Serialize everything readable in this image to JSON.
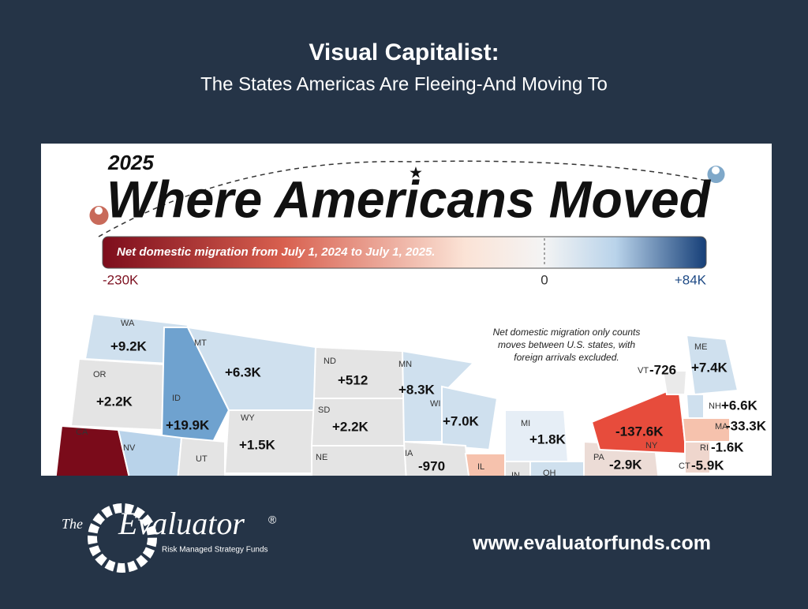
{
  "header": {
    "title": "Visual Capitalist:",
    "subtitle": "The States Americas Are Fleeing-And Moving To"
  },
  "infographic": {
    "year": "2025",
    "title": "Where Americans Moved",
    "scale": {
      "caption": "Net domestic migration from July 1, 2024 to July 1, 2025.",
      "min_label": "-230K",
      "mid_label": "0",
      "max_label": "+84K"
    },
    "note": [
      "Net domestic migration only counts",
      "moves between U.S. states, with",
      "foreign arrivals excluded."
    ],
    "states": [
      {
        "abbr": "WA",
        "label": "+9.2K"
      },
      {
        "abbr": "OR",
        "label": "+2.2K"
      },
      {
        "abbr": "CA"
      },
      {
        "abbr": "ID",
        "label": "+19.9K"
      },
      {
        "abbr": "MT",
        "label": "+6.3K"
      },
      {
        "abbr": "WY",
        "label": "+1.5K"
      },
      {
        "abbr": "NV"
      },
      {
        "abbr": "UT"
      },
      {
        "abbr": "ND",
        "label": "+512"
      },
      {
        "abbr": "SD",
        "label": "+2.2K"
      },
      {
        "abbr": "NE"
      },
      {
        "abbr": "MN",
        "label": "+8.3K"
      },
      {
        "abbr": "WI",
        "label": "+7.0K"
      },
      {
        "abbr": "IA",
        "label": "-970"
      },
      {
        "abbr": "IL"
      },
      {
        "abbr": "MI",
        "label": "+1.8K"
      },
      {
        "abbr": "IN"
      },
      {
        "abbr": "OH"
      },
      {
        "abbr": "PA",
        "label": "-2.9K"
      },
      {
        "abbr": "NY",
        "label": "-137.6K"
      },
      {
        "abbr": "VT",
        "label": "-726"
      },
      {
        "abbr": "ME",
        "label": "+7.4K"
      },
      {
        "abbr": "NH",
        "label": "+6.6K"
      },
      {
        "abbr": "MA",
        "label": "-33.3K"
      },
      {
        "abbr": "RI",
        "label": "-1.6K"
      },
      {
        "abbr": "CT",
        "label": "-5.9K"
      }
    ]
  },
  "footer": {
    "logo_prefix": "The",
    "logo_name": "Evaluator",
    "logo_mark": "®",
    "logo_tagline": "Risk Managed Strategy Funds",
    "url": "www.evaluatorfunds.com"
  }
}
